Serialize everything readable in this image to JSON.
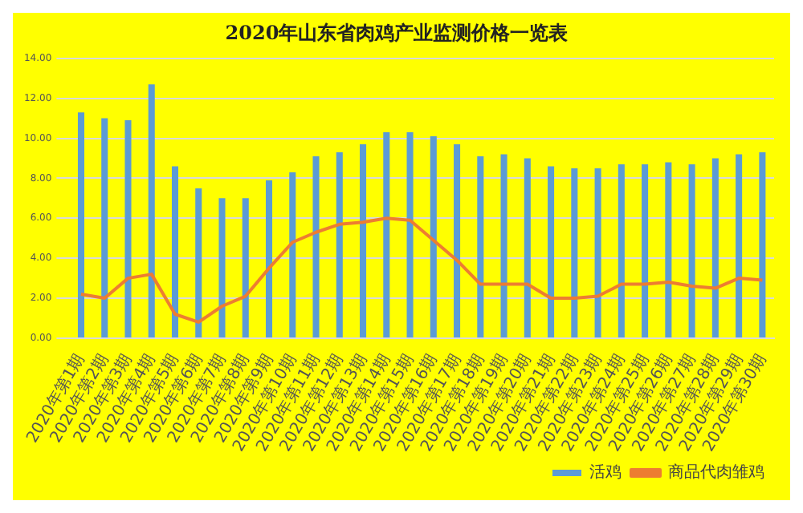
{
  "chart_data": {
    "type": "bar",
    "title": "2020年山东省肉鸡产业监测价格一览表",
    "categories": [
      "2020年第1期",
      "2020年第2期",
      "2020年第3期",
      "2020年第4期",
      "2020年第5期",
      "2020年第6期",
      "2020年第7期",
      "2020年第8期",
      "2020年第9期",
      "2020年第10期",
      "2020年第11期",
      "2020年第12期",
      "2020年第13期",
      "2020年第14期",
      "2020年第15期",
      "2020年第16期",
      "2020年第17期",
      "2020年第18期",
      "2020年第19期",
      "2020年第20期",
      "2020年第21期",
      "2020年第22期",
      "2020年第23期",
      "2020年第24期",
      "2020年第25期",
      "2020年第26期",
      "2020年第27期",
      "2020年第28期",
      "2020年第29期",
      "2020年第30期"
    ],
    "series": [
      {
        "name": "活鸡",
        "color": "#5b9bd5",
        "values": [
          11.3,
          11.0,
          10.9,
          12.7,
          8.6,
          7.5,
          7.0,
          7.0,
          7.9,
          8.3,
          9.1,
          9.3,
          9.7,
          10.3,
          10.3,
          10.1,
          9.7,
          9.1,
          9.2,
          9.0,
          8.6,
          8.5,
          8.5,
          8.7,
          8.7,
          8.8,
          8.7,
          9.0,
          9.2,
          9.3
        ]
      },
      {
        "name": "商品代肉雏鸡",
        "type": "line",
        "color": "#ed7d31",
        "values": [
          2.2,
          2.0,
          3.0,
          3.2,
          1.2,
          0.8,
          1.6,
          2.1,
          3.5,
          4.8,
          5.3,
          5.7,
          5.8,
          6.0,
          5.9,
          4.9,
          3.9,
          2.7,
          2.7,
          2.7,
          2.0,
          2.0,
          2.1,
          2.7,
          2.7,
          2.8,
          2.6,
          2.5,
          3.0,
          2.9
        ]
      }
    ],
    "ylim": [
      0,
      14
    ],
    "yticks": [
      {
        "value": 0,
        "label": "0.00"
      },
      {
        "value": 2,
        "label": "2.00"
      },
      {
        "value": 4,
        "label": "4.00"
      },
      {
        "value": 6,
        "label": "6.00"
      },
      {
        "value": 8,
        "label": "8.00"
      },
      {
        "value": 10,
        "label": "10.00"
      },
      {
        "value": 12,
        "label": "12.00"
      },
      {
        "value": 14,
        "label": "14.00"
      }
    ],
    "grid": "y",
    "legend": "bottom",
    "marker": "none",
    "line_style": "solid"
  }
}
